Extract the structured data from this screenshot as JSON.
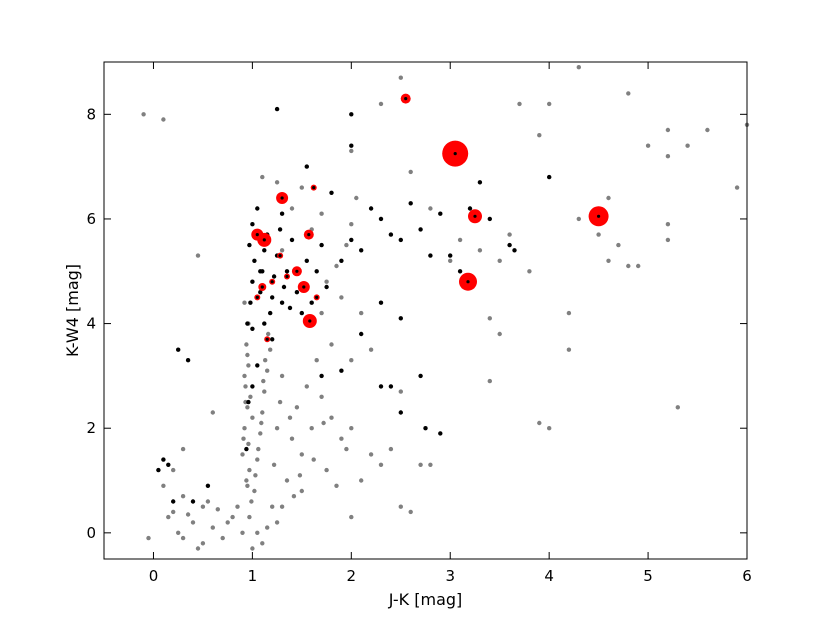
{
  "chart_data": {
    "type": "scatter",
    "title": "",
    "xlabel": "J-K [mag]",
    "ylabel": "K-W4 [mag]",
    "xlim": [
      -0.5,
      6.0
    ],
    "ylim": [
      -0.5,
      9.0
    ],
    "x_ticks": [
      0,
      1,
      2,
      3,
      4,
      5,
      6
    ],
    "y_ticks": [
      0,
      2,
      4,
      6,
      8
    ],
    "x_tick_labels": [
      "0",
      "1",
      "2",
      "3",
      "4",
      "5",
      "6"
    ],
    "y_tick_labels": [
      "0",
      "2",
      "4",
      "6",
      "8"
    ],
    "grid": false,
    "series": [
      {
        "color": "#808080",
        "marker": "small dot",
        "points": [
          [
            -0.1,
            8.0
          ],
          [
            0.1,
            7.9
          ],
          [
            0.45,
            5.3
          ],
          [
            0.6,
            2.3
          ],
          [
            0.3,
            1.6
          ],
          [
            0.2,
            1.2
          ],
          [
            0.1,
            0.9
          ],
          [
            0.3,
            0.7
          ],
          [
            0.5,
            0.5
          ],
          [
            0.2,
            0.4
          ],
          [
            0.4,
            0.2
          ],
          [
            0.6,
            0.1
          ],
          [
            0.3,
            -0.1
          ],
          [
            0.5,
            -0.2
          ],
          [
            0.7,
            -0.1
          ],
          [
            0.8,
            0.3
          ],
          [
            0.15,
            0.3
          ],
          [
            0.35,
            0.35
          ],
          [
            0.55,
            0.6
          ],
          [
            0.75,
            0.2
          ],
          [
            0.25,
            0.0
          ],
          [
            0.45,
            -0.3
          ],
          [
            0.65,
            0.45
          ],
          [
            0.85,
            0.5
          ],
          [
            -0.05,
            -0.1
          ],
          [
            0.9,
            0.0
          ],
          [
            0.95,
            0.9
          ],
          [
            0.9,
            1.5
          ],
          [
            0.92,
            2.0
          ],
          [
            0.95,
            2.4
          ],
          [
            0.93,
            2.8
          ],
          [
            0.96,
            3.2
          ],
          [
            0.94,
            3.6
          ],
          [
            0.97,
            1.2
          ],
          [
            0.91,
            1.8
          ],
          [
            0.98,
            2.6
          ],
          [
            0.92,
            3.0
          ],
          [
            0.99,
            0.6
          ],
          [
            0.94,
            1.0
          ],
          [
            0.96,
            1.7
          ],
          [
            1.0,
            2.2
          ],
          [
            0.93,
            2.5
          ],
          [
            0.95,
            3.4
          ],
          [
            0.97,
            0.3
          ],
          [
            1.02,
            0.8
          ],
          [
            1.05,
            1.4
          ],
          [
            1.08,
            1.9
          ],
          [
            1.1,
            2.3
          ],
          [
            1.12,
            2.7
          ],
          [
            1.15,
            3.1
          ],
          [
            1.18,
            3.5
          ],
          [
            1.2,
            0.5
          ],
          [
            1.03,
            1.1
          ],
          [
            1.06,
            1.6
          ],
          [
            1.09,
            2.1
          ],
          [
            1.11,
            2.9
          ],
          [
            1.13,
            3.3
          ],
          [
            1.16,
            3.8
          ],
          [
            1.22,
            1.3
          ],
          [
            1.25,
            2.0
          ],
          [
            1.28,
            2.5
          ],
          [
            1.3,
            3.0
          ],
          [
            1.35,
            1.0
          ],
          [
            1.4,
            1.8
          ],
          [
            1.45,
            2.4
          ],
          [
            1.5,
            1.5
          ],
          [
            1.6,
            2.0
          ],
          [
            1.7,
            2.6
          ],
          [
            1.75,
            1.2
          ],
          [
            1.8,
            2.2
          ],
          [
            1.9,
            1.8
          ],
          [
            2.0,
            2.0
          ],
          [
            2.0,
            0.3
          ],
          [
            2.1,
            1.0
          ],
          [
            2.2,
            1.5
          ],
          [
            2.3,
            1.3
          ],
          [
            2.4,
            1.6
          ],
          [
            2.5,
            0.5
          ],
          [
            2.5,
            2.7
          ],
          [
            2.8,
            1.3
          ],
          [
            2.6,
            0.4
          ],
          [
            1.5,
            0.8
          ],
          [
            1.3,
            0.5
          ],
          [
            1.55,
            2.8
          ],
          [
            1.65,
            3.3
          ],
          [
            1.7,
            4.2
          ],
          [
            1.8,
            3.6
          ],
          [
            1.72,
            2.1
          ],
          [
            1.62,
            1.4
          ],
          [
            1.85,
            0.9
          ],
          [
            1.95,
            1.6
          ],
          [
            1.38,
            2.2
          ],
          [
            1.42,
            0.7
          ],
          [
            1.48,
            1.1
          ],
          [
            1.25,
            0.2
          ],
          [
            1.15,
            0.1
          ],
          [
            1.1,
            -0.2
          ],
          [
            1.05,
            0.0
          ],
          [
            1.0,
            -0.3
          ],
          [
            0.92,
            4.4
          ],
          [
            0.96,
            4.0
          ],
          [
            1.2,
            4.8
          ],
          [
            1.3,
            5.4
          ],
          [
            1.25,
            6.7
          ],
          [
            1.4,
            6.2
          ],
          [
            1.5,
            6.6
          ],
          [
            1.6,
            5.8
          ],
          [
            1.7,
            6.1
          ],
          [
            1.75,
            4.8
          ],
          [
            1.9,
            4.5
          ],
          [
            2.0,
            7.3
          ],
          [
            2.0,
            5.9
          ],
          [
            2.3,
            8.2
          ],
          [
            2.5,
            8.7
          ],
          [
            2.6,
            6.9
          ],
          [
            2.8,
            6.2
          ],
          [
            3.0,
            5.2
          ],
          [
            3.2,
            4.8
          ],
          [
            3.3,
            5.4
          ],
          [
            3.4,
            4.1
          ],
          [
            3.5,
            3.8
          ],
          [
            3.5,
            5.2
          ],
          [
            3.6,
            5.7
          ],
          [
            3.8,
            5.0
          ],
          [
            3.7,
            8.2
          ],
          [
            4.0,
            8.2
          ],
          [
            3.9,
            7.6
          ],
          [
            4.2,
            4.2
          ],
          [
            4.2,
            3.5
          ],
          [
            4.3,
            6.0
          ],
          [
            4.3,
            8.9
          ],
          [
            4.5,
            5.7
          ],
          [
            4.6,
            6.4
          ],
          [
            4.7,
            5.5
          ],
          [
            4.8,
            8.4
          ],
          [
            4.9,
            5.1
          ],
          [
            5.0,
            7.4
          ],
          [
            5.2,
            7.7
          ],
          [
            5.2,
            7.2
          ],
          [
            5.2,
            5.9
          ],
          [
            5.2,
            5.6
          ],
          [
            5.3,
            2.4
          ],
          [
            5.4,
            7.4
          ],
          [
            5.6,
            7.7
          ],
          [
            5.9,
            6.6
          ],
          [
            6.0,
            7.8
          ],
          [
            4.6,
            5.2
          ],
          [
            4.8,
            5.1
          ],
          [
            3.9,
            2.1
          ],
          [
            4.0,
            2.0
          ],
          [
            3.4,
            2.9
          ],
          [
            3.1,
            5.6
          ],
          [
            2.7,
            1.3
          ],
          [
            2.0,
            3.3
          ],
          [
            2.2,
            3.5
          ],
          [
            2.1,
            4.2
          ],
          [
            1.85,
            5.1
          ],
          [
            1.95,
            5.5
          ],
          [
            2.05,
            6.4
          ],
          [
            1.1,
            6.8
          ]
        ]
      },
      {
        "color": "#000000",
        "marker": "dot",
        "points": [
          [
            0.25,
            3.5
          ],
          [
            0.35,
            3.3
          ],
          [
            0.05,
            1.2
          ],
          [
            0.1,
            1.4
          ],
          [
            0.15,
            1.3
          ],
          [
            0.55,
            0.9
          ],
          [
            0.4,
            0.6
          ],
          [
            0.2,
            0.6
          ],
          [
            0.95,
            4.0
          ],
          [
            0.98,
            4.4
          ],
          [
            1.0,
            4.8
          ],
          [
            1.02,
            5.2
          ],
          [
            0.97,
            5.5
          ],
          [
            1.0,
            5.9
          ],
          [
            1.05,
            6.2
          ],
          [
            1.08,
            4.6
          ],
          [
            1.1,
            5.0
          ],
          [
            1.12,
            5.4
          ],
          [
            1.15,
            5.7
          ],
          [
            1.18,
            4.2
          ],
          [
            1.2,
            4.5
          ],
          [
            1.22,
            4.9
          ],
          [
            1.25,
            5.3
          ],
          [
            1.28,
            5.8
          ],
          [
            1.3,
            6.1
          ],
          [
            1.32,
            4.7
          ],
          [
            1.35,
            5.0
          ],
          [
            1.38,
            4.3
          ],
          [
            1.4,
            5.6
          ],
          [
            1.45,
            4.6
          ],
          [
            1.5,
            4.2
          ],
          [
            1.55,
            5.2
          ],
          [
            1.6,
            4.4
          ],
          [
            1.65,
            5.0
          ],
          [
            1.7,
            5.5
          ],
          [
            1.75,
            4.7
          ],
          [
            1.8,
            6.5
          ],
          [
            1.9,
            5.2
          ],
          [
            2.0,
            5.6
          ],
          [
            2.1,
            5.4
          ],
          [
            2.2,
            6.2
          ],
          [
            2.3,
            6.0
          ],
          [
            2.4,
            5.7
          ],
          [
            2.5,
            5.6
          ],
          [
            2.6,
            6.3
          ],
          [
            2.7,
            5.8
          ],
          [
            2.8,
            5.3
          ],
          [
            2.9,
            6.1
          ],
          [
            3.0,
            5.3
          ],
          [
            3.1,
            5.0
          ],
          [
            3.2,
            6.2
          ],
          [
            3.3,
            6.7
          ],
          [
            3.4,
            6.0
          ],
          [
            3.6,
            5.5
          ],
          [
            3.65,
            5.4
          ],
          [
            4.0,
            6.8
          ],
          [
            1.25,
            8.1
          ],
          [
            2.0,
            8.0
          ],
          [
            1.55,
            7.0
          ],
          [
            2.0,
            7.4
          ],
          [
            2.3,
            4.4
          ],
          [
            2.1,
            3.8
          ],
          [
            2.5,
            4.1
          ],
          [
            2.7,
            3.0
          ],
          [
            2.3,
            2.8
          ],
          [
            2.4,
            2.8
          ],
          [
            2.5,
            2.3
          ],
          [
            2.75,
            2.0
          ],
          [
            2.9,
            1.9
          ],
          [
            1.2,
            3.7
          ],
          [
            1.05,
            3.2
          ],
          [
            1.0,
            2.8
          ],
          [
            0.96,
            2.5
          ],
          [
            0.94,
            1.6
          ],
          [
            1.7,
            3.0
          ],
          [
            1.9,
            3.1
          ],
          [
            1.0,
            3.9
          ],
          [
            1.12,
            4.0
          ],
          [
            1.3,
            4.4
          ],
          [
            1.08,
            5.0
          ]
        ]
      },
      {
        "color": "#ff0000",
        "marker": "circle (size varies)",
        "points": [
          [
            2.55,
            8.3,
            5
          ],
          [
            3.05,
            7.25,
            13
          ],
          [
            1.3,
            6.4,
            6
          ],
          [
            3.25,
            6.05,
            7
          ],
          [
            4.5,
            6.05,
            10
          ],
          [
            1.05,
            5.7,
            6
          ],
          [
            1.12,
            5.6,
            7
          ],
          [
            1.57,
            5.7,
            5
          ],
          [
            1.45,
            5.0,
            5
          ],
          [
            1.52,
            4.7,
            6
          ],
          [
            1.58,
            4.05,
            7
          ],
          [
            3.18,
            4.8,
            9
          ],
          [
            1.1,
            4.7,
            4
          ],
          [
            1.05,
            4.5,
            3
          ],
          [
            1.15,
            3.7,
            3
          ],
          [
            1.2,
            4.8,
            3
          ],
          [
            1.62,
            6.6,
            3
          ],
          [
            1.65,
            4.5,
            3
          ],
          [
            1.28,
            5.3,
            3
          ],
          [
            1.35,
            4.9,
            3
          ]
        ]
      }
    ]
  }
}
